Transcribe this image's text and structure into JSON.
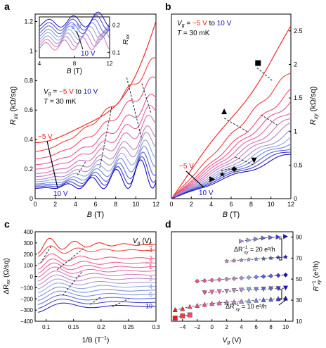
{
  "colors": {
    "ramp": [
      "#1a0fc8",
      "#3f3ccc",
      "#5a62d2",
      "#7385d8",
      "#8da3da",
      "#a68fcb",
      "#bd7fc0",
      "#d16fb6",
      "#e061a7",
      "#ea5390",
      "#f04a6a",
      "#f23d3d",
      "#ef1b1b"
    ],
    "dash": "#222222",
    "axis": "#000000"
  },
  "panels": {
    "a": {
      "label": "a"
    },
    "b": {
      "label": "b"
    },
    "c": {
      "label": "c"
    },
    "d": {
      "label": "d"
    }
  },
  "text": {
    "a_xlabel_b": "B",
    "a_xlabel_u": " (T)",
    "a_ylabel_r": "R",
    "a_ylabel_sub": "xx",
    "a_ylabel_u": " (kΩ/sq)",
    "a_vg": "V",
    "a_vg_sub": "g",
    "a_vg_eq": " = ",
    "a_vg_lo": "−5 V",
    "a_vg_to": " to ",
    "a_vg_hi": "10 V",
    "a_temp": "T",
    "a_temp_val": " = 30 mK",
    "a_lo": "−5 V",
    "a_hi": "10 V",
    "ai_xlabel_b": "B",
    "ai_xlabel_u": " (T)",
    "ai_ylabel_r": "R",
    "ai_ylabel_sub": "xx",
    "ai_hi": "3 V",
    "ai_lo": "10 V",
    "b_ylabel_r": "R",
    "b_ylabel_sub": "xy",
    "b_ylabel_u": " (kΩ/sq)",
    "b_xlabel_b": "B",
    "b_xlabel_u": " (T)",
    "b_vg": "V",
    "b_vg_sub": "g",
    "b_vg_eq": " = ",
    "b_vg_lo": "−5 V",
    "b_vg_to": " to ",
    "b_vg_hi": "10 V",
    "b_temp": "T",
    "b_temp_val": " = 30 mK",
    "b_lo": "−5 V",
    "b_hi": "10 V",
    "c_ylabel_d": "ΔR",
    "c_ylabel_sub": "xx",
    "c_ylabel_u": " (Ω/sq)",
    "c_xlabel": "1/B (T",
    "c_xlabel_sup": "−1",
    "c_xlabel_end": ")",
    "c_vg": "V",
    "c_vg_sub": "g",
    "c_vg_u": " (V)",
    "d_xlabel": "V",
    "d_xlabel_sub": "g",
    "d_xlabel_u": " (V)",
    "d_ylabel": "R",
    "d_ylabel_sub": "xy",
    "d_ylabel_sup": "−1",
    "d_ylabel_u": " (e²/h)",
    "d_ann1": "ΔR",
    "d_ann1_sub": "xy",
    "d_ann1_sup": "−1",
    "d_ann1_val": " = 20 e²/h",
    "d_ann2": "ΔR",
    "d_ann2_sub": "xy",
    "d_ann2_sup": "−1",
    "d_ann2_val": " = 10 e²/h"
  },
  "chart_data": [
    {
      "panel": "a",
      "type": "line",
      "xlabel": "B (T)",
      "ylabel": "Rxx (kΩ/sq)",
      "xlim": [
        0,
        12
      ],
      "ylim": [
        0,
        1.25
      ],
      "xticks": [
        0,
        2,
        4,
        6,
        8,
        10,
        12
      ],
      "yticks": [
        0,
        0.2,
        0.4,
        0.6,
        0.8,
        1.0,
        1.2
      ],
      "ytick_labels": [
        "0",
        "0.2",
        "0.4",
        "0.6",
        "0.8",
        "1",
        "1.2"
      ],
      "annotations": [
        "Vg = −5 V to 10 V",
        "T = 30 mK",
        "−5 V",
        "10 V"
      ],
      "series_count": 13,
      "series_zero_field": [
        0.38,
        0.32,
        0.27,
        0.23,
        0.2,
        0.17,
        0.15,
        0.13,
        0.115,
        0.1,
        0.09,
        0.08,
        0.07
      ],
      "series_at_12T": [
        1.2,
        0.95,
        0.82,
        0.7,
        0.62,
        0.55,
        0.47,
        0.42,
        0.36,
        0.31,
        0.26,
        0.22,
        0.19
      ]
    },
    {
      "panel": "a-inset",
      "type": "line",
      "xlabel": "B (T)",
      "ylabel": "Rxx (kΩ/sq)",
      "xlim": [
        4,
        12
      ],
      "ylim": [
        0.08,
        0.23
      ],
      "xticks": [
        4,
        8,
        12
      ],
      "yticks": [
        0.1,
        0.2
      ],
      "ytick_labels": [
        "0.1",
        "0.2"
      ],
      "annotations": [
        "3 V",
        "10 V"
      ],
      "series_count": 8
    },
    {
      "panel": "b",
      "type": "line",
      "xlabel": "B (T)",
      "ylabel": "Rxy (kΩ/sq)",
      "xlim": [
        0,
        12
      ],
      "ylim": [
        0,
        2.75
      ],
      "xticks": [
        0,
        2,
        4,
        6,
        8,
        10,
        12
      ],
      "yticks": [
        0,
        0.5,
        1.0,
        1.5,
        2.0,
        2.5
      ],
      "ytick_labels": [
        "0",
        "0.5",
        "1",
        "1.5",
        "2",
        "2.5"
      ],
      "annotations": [
        "Vg = −5 V to 10 V",
        "T = 30 mK",
        "−5 V",
        "10 V"
      ],
      "series_count": 13,
      "series_at_12T": [
        2.7,
        1.9,
        1.6,
        1.45,
        1.32,
        1.2,
        1.1,
        1.0,
        0.92,
        0.85,
        0.78,
        0.72,
        0.66
      ],
      "markers": [
        {
          "shape": "square",
          "x": 8.7,
          "y": 2.02
        },
        {
          "shape": "triangle-up",
          "x": 5.3,
          "y": 1.3
        },
        {
          "shape": "triangle-down",
          "x": 8.3,
          "y": 0.57
        },
        {
          "shape": "diamond",
          "x": 6.3,
          "y": 0.44
        },
        {
          "shape": "star",
          "x": 5.1,
          "y": 0.36
        },
        {
          "shape": "triangle-right",
          "x": 4.1,
          "y": 0.29
        }
      ]
    },
    {
      "panel": "c",
      "type": "line",
      "xlabel": "1/B (T−1)",
      "ylabel": "ΔRxx (Ω/sq)",
      "xlim": [
        0.08,
        0.3
      ],
      "ylim": [
        -400,
        400
      ],
      "xticks": [
        0.1,
        0.15,
        0.2,
        0.25,
        0.3
      ],
      "xtick_labels": [
        "0.1",
        "0.15",
        "0.2",
        "0.25",
        "0.3"
      ],
      "yticks": [
        -400,
        -300,
        -200,
        -100,
        0,
        100,
        200,
        300,
        400
      ],
      "ytick_labels": [
        "−400",
        "−300",
        "−200",
        "−100",
        "0",
        "100",
        "200",
        "300",
        "400"
      ],
      "legend_title": "Vg (V)",
      "series": [
        {
          "name": "−5",
          "offset": 285
        },
        {
          "name": "−4",
          "offset": 235
        },
        {
          "name": "−3",
          "offset": 165
        },
        {
          "name": "−2",
          "offset": 120
        },
        {
          "name": "−1",
          "offset": 85
        },
        {
          "name": "",
          "offset": 50
        },
        {
          "name": "",
          "offset": 15
        },
        {
          "name": "2",
          "offset": -20
        },
        {
          "name": "",
          "offset": -55
        },
        {
          "name": "4",
          "offset": -90
        },
        {
          "name": "",
          "offset": -125
        },
        {
          "name": "6",
          "offset": -160
        },
        {
          "name": "",
          "offset": -195
        },
        {
          "name": "",
          "offset": -230
        },
        {
          "name": "10",
          "offset": -265
        }
      ]
    },
    {
      "panel": "d",
      "type": "scatter",
      "xlabel": "Vg (V)",
      "ylabel": "Rxy−1 (e²/h)",
      "xlim": [
        -5.5,
        11
      ],
      "ylim": [
        10,
        95
      ],
      "xticks": [
        -4,
        -2,
        0,
        2,
        4,
        6,
        8,
        10
      ],
      "xtick_labels": [
        "−4",
        "−2",
        "0",
        "2",
        "4",
        "6",
        "8",
        "10"
      ],
      "yticks": [
        10,
        30,
        50,
        70,
        90
      ],
      "annotations": [
        "ΔRxy−1 = 20 e²/h",
        "ΔRxy−1 = 10 e²/h"
      ],
      "series": [
        {
          "marker": "square",
          "x": [
            -5,
            -4,
            -3
          ],
          "y": [
            13,
            15,
            16
          ]
        },
        {
          "marker": "triangle-up",
          "x": [
            -5,
            -4,
            -3,
            -2,
            -1,
            0,
            1,
            2,
            3,
            4,
            5,
            6,
            7,
            8,
            9,
            10
          ],
          "y": [
            21,
            22,
            24,
            25,
            26,
            27,
            27.5,
            28,
            28.5,
            29,
            29.5,
            30,
            30.5,
            31,
            31.5,
            32
          ]
        },
        {
          "marker": "triangle-down",
          "x": [
            -1,
            0,
            1,
            2,
            3,
            4,
            5,
            6,
            7,
            8,
            9,
            10
          ],
          "y": [
            37,
            37.5,
            38,
            38.5,
            39,
            39.5,
            40,
            40.2,
            40.5,
            40.8,
            41,
            41.5
          ]
        },
        {
          "marker": "diamond",
          "x": [
            -2,
            -1,
            0,
            1,
            2,
            3,
            4,
            5,
            6,
            7,
            8,
            9,
            10
          ],
          "y": [
            48,
            48.5,
            49,
            49.5,
            50,
            50.5,
            51,
            51.5,
            52,
            52.5,
            53,
            53.5,
            54
          ]
        },
        {
          "marker": "star",
          "x": [
            2,
            3,
            4,
            5,
            6,
            7,
            8,
            9,
            10
          ],
          "y": [
            67,
            67.5,
            68,
            68.5,
            69,
            69.5,
            70,
            70.5,
            71
          ]
        },
        {
          "marker": "triangle-right",
          "x": [
            4,
            5,
            6,
            7,
            8,
            9,
            10
          ],
          "y": [
            86,
            87,
            88,
            89,
            89.5,
            90,
            90.5
          ]
        }
      ]
    }
  ]
}
